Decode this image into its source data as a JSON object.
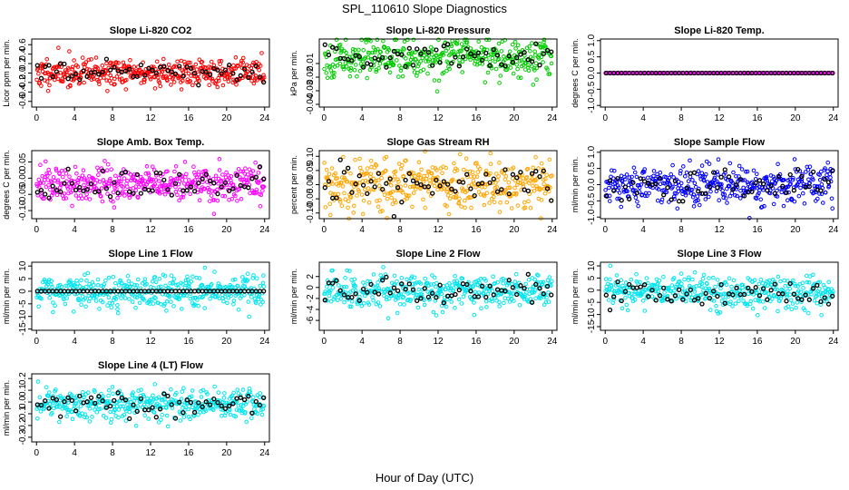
{
  "figure": {
    "title": "SPL_110610  Slope Diagnostics",
    "xlabel": "Hour of Day (UTC)"
  },
  "chart_data": [
    {
      "type": "scatter",
      "title": "Slope Li-820 CO2",
      "ylabel": "Licor ppm per min.",
      "xlim": [
        -0.5,
        24.5
      ],
      "ylim": [
        -0.72,
        0.72
      ],
      "yticks": [
        -0.6,
        -0.4,
        -0.2,
        0.0,
        0.2,
        0.4,
        0.6
      ],
      "ytick_labels": [
        "-0.6",
        "-0.4",
        "-0.2",
        "0.0",
        "0.2",
        "0.4",
        "0.6"
      ],
      "xticks": [
        0,
        4,
        8,
        12,
        16,
        20,
        24
      ],
      "color": "#ff0000",
      "sd": 0.15,
      "mean": 0.0,
      "n": 420,
      "black_n": 60,
      "seed": 11
    },
    {
      "type": "scatter",
      "title": "Slope Li-820 Pressure",
      "ylabel": "kPa per min.",
      "xlim": [
        -0.5,
        24.5
      ],
      "ylim": [
        -0.042,
        0.008
      ],
      "yticks": [
        -0.04,
        -0.03,
        -0.02,
        -0.01
      ],
      "ytick_labels": [
        "-0.04",
        "-0.03",
        "-0.02",
        "-0.01"
      ],
      "xticks": [
        0,
        4,
        8,
        12,
        16,
        20,
        24
      ],
      "color": "#00cc00",
      "sd": 0.007,
      "mean": -0.005,
      "n": 420,
      "black_n": 60,
      "seed": 23
    },
    {
      "type": "scatter",
      "title": "Slope Li-820 Temp.",
      "ylabel": "degrees C per min.",
      "xlim": [
        -0.5,
        24.5
      ],
      "ylim": [
        -1.05,
        1.05
      ],
      "yticks": [
        -1.0,
        -0.5,
        0.0,
        0.5,
        1.0
      ],
      "ytick_labels": [
        "-1.0",
        "-0.5",
        "0.0",
        "0.5",
        "1.0"
      ],
      "xticks": [
        0,
        4,
        8,
        12,
        16,
        20,
        24
      ],
      "color": "#ff00ff",
      "sd": 0.0,
      "mean": 0.0,
      "n": 200,
      "black_n": 60,
      "seed": 31
    },
    {
      "type": "scatter",
      "title": "Slope Amb. Box Temp.",
      "ylabel": "degrees C per min.",
      "xlim": [
        -0.5,
        24.5
      ],
      "ylim": [
        -0.125,
        0.085
      ],
      "yticks": [
        -0.1,
        -0.05,
        0.0,
        0.05
      ],
      "ytick_labels": [
        "-0.10",
        "-0.05",
        "0.00",
        "0.05"
      ],
      "xticks": [
        0,
        4,
        8,
        12,
        16,
        20,
        24
      ],
      "color": "#ff00ff",
      "sd": 0.028,
      "mean": -0.02,
      "n": 420,
      "black_n": 60,
      "seed": 41
    },
    {
      "type": "scatter",
      "title": "Slope Gas Stream RH",
      "ylabel": "percent per min.",
      "xlim": [
        -0.5,
        24.5
      ],
      "ylim": [
        -0.12,
        0.12
      ],
      "yticks": [
        -0.1,
        -0.05,
        0.0,
        0.05,
        0.1
      ],
      "ytick_labels": [
        "-0.10",
        "-0.05",
        "0.00",
        "0.05",
        "0.10"
      ],
      "xticks": [
        0,
        4,
        8,
        12,
        16,
        20,
        24
      ],
      "color": "#ffa500",
      "sd": 0.045,
      "mean": 0.0,
      "n": 420,
      "black_n": 60,
      "seed": 53
    },
    {
      "type": "scatter",
      "title": "Slope Sample Flow",
      "ylabel": "ml/min per min.",
      "xlim": [
        -0.5,
        24.5
      ],
      "ylim": [
        -1.05,
        1.05
      ],
      "yticks": [
        -1.0,
        -0.5,
        0.0,
        0.5,
        1.0
      ],
      "ytick_labels": [
        "-1.0",
        "-0.5",
        "0.0",
        "0.5",
        "1.0"
      ],
      "xticks": [
        0,
        4,
        8,
        12,
        16,
        20,
        24
      ],
      "color": "#0000ff",
      "sd": 0.3,
      "mean": 0.0,
      "n": 420,
      "black_n": 60,
      "seed": 61
    },
    {
      "type": "scatter",
      "title": "Slope Line 1 Flow",
      "ylabel": "ml/min per min.",
      "xlim": [
        -0.5,
        24.5
      ],
      "ylim": [
        -15.5,
        11.5
      ],
      "yticks": [
        -15,
        -10,
        -5,
        0,
        5,
        10
      ],
      "ytick_labels": [
        "-15",
        "-10",
        "-5",
        "0",
        "5",
        "10"
      ],
      "xticks": [
        0,
        4,
        8,
        12,
        16,
        20,
        24
      ],
      "color": "#00e5ee",
      "sd": 3.2,
      "mean": 0.0,
      "n": 420,
      "black_n": 60,
      "seed": 71,
      "black_flat": true
    },
    {
      "type": "scatter",
      "title": "Slope Line 2 Flow",
      "ylabel": "ml/min per min.",
      "xlim": [
        -0.5,
        24.5
      ],
      "ylim": [
        -7.8,
        4.6
      ],
      "yticks": [
        -6,
        -4,
        -2,
        0,
        2
      ],
      "ytick_labels": [
        "-6",
        "-4",
        "-2",
        "0",
        "2"
      ],
      "xticks": [
        0,
        4,
        8,
        12,
        16,
        20,
        24
      ],
      "color": "#00e5ee",
      "sd": 1.5,
      "mean": -0.6,
      "n": 420,
      "black_n": 60,
      "seed": 83
    },
    {
      "type": "scatter",
      "title": "Slope Line 3 Flow",
      "ylabel": "ml/min per min.",
      "xlim": [
        -0.5,
        24.5
      ],
      "ylim": [
        -16.5,
        11.5
      ],
      "yticks": [
        -15,
        -10,
        -5,
        0,
        5,
        10
      ],
      "ytick_labels": [
        "-15",
        "-10",
        "-5",
        "0",
        "5",
        "10"
      ],
      "xticks": [
        0,
        4,
        8,
        12,
        16,
        20,
        24
      ],
      "color": "#00e5ee",
      "sd": 3.6,
      "mean": -1.0,
      "n": 420,
      "black_n": 60,
      "seed": 97
    },
    {
      "type": "scatter",
      "title": "Slope Line 4 (LT) Flow",
      "ylabel": "ml/min per min.",
      "xlim": [
        -0.5,
        24.5
      ],
      "ylim": [
        -0.34,
        0.24
      ],
      "yticks": [
        -0.3,
        -0.2,
        -0.1,
        0.0,
        0.1,
        0.2
      ],
      "ytick_labels": [
        "-0.3",
        "-0.2",
        "-0.1",
        "0.0",
        "0.1",
        "0.2"
      ],
      "xticks": [
        0,
        4,
        8,
        12,
        16,
        20,
        24
      ],
      "color": "#00e5ee",
      "sd": 0.07,
      "mean": -0.02,
      "n": 420,
      "black_n": 60,
      "seed": 103
    }
  ]
}
